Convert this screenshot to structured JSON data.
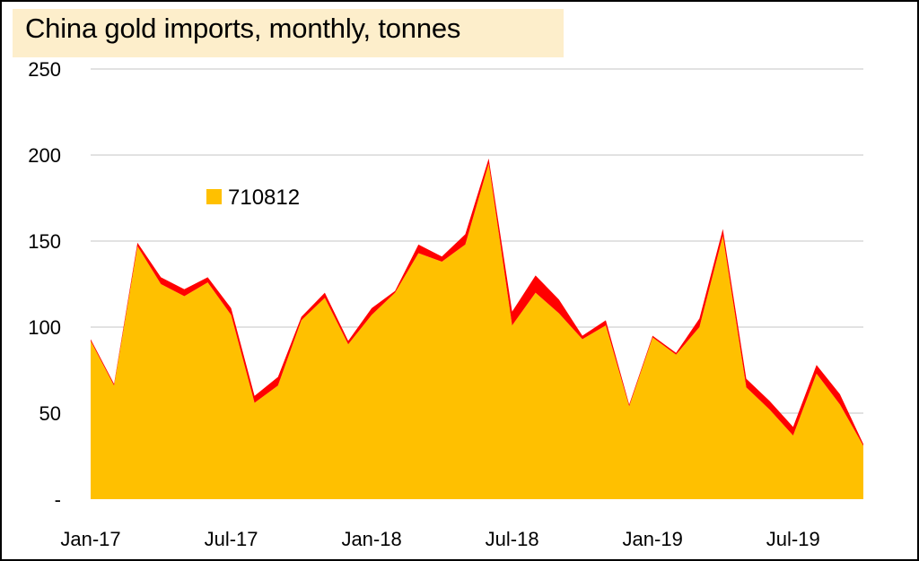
{
  "chart_data": {
    "type": "area",
    "title": "China gold imports, monthly, tonnes",
    "xlabel": "",
    "ylabel": "",
    "ylim": [
      0,
      250
    ],
    "y_ticks": [
      0,
      50,
      100,
      150,
      200,
      250
    ],
    "y_tick_labels": [
      "-",
      "50",
      "100",
      "150",
      "200",
      "250"
    ],
    "x_tick_labels": [
      "Jan-17",
      "Jul-17",
      "Jan-18",
      "Jul-18",
      "Jan-19",
      "Jul-19"
    ],
    "x": [
      "Jan-17",
      "Feb-17",
      "Mar-17",
      "Apr-17",
      "May-17",
      "Jun-17",
      "Jul-17",
      "Aug-17",
      "Sep-17",
      "Oct-17",
      "Nov-17",
      "Dec-17",
      "Jan-18",
      "Feb-18",
      "Mar-18",
      "Apr-18",
      "May-18",
      "Jun-18",
      "Jul-18",
      "Aug-18",
      "Sep-18",
      "Oct-18",
      "Nov-18",
      "Dec-18",
      "Jan-19",
      "Feb-19",
      "Mar-19",
      "Apr-19",
      "May-19",
      "Jun-19",
      "Jul-19",
      "Aug-19",
      "Sep-19",
      "Oct-19"
    ],
    "grid": true,
    "legend_position": "upper-left",
    "series": [
      {
        "name": "710812",
        "color": "#ffc000",
        "values": [
          92,
          66,
          147,
          125,
          118,
          126,
          107,
          56,
          66,
          104,
          117,
          90,
          107,
          120,
          143,
          138,
          148,
          195,
          101,
          120,
          108,
          93,
          101,
          54,
          94,
          84,
          100,
          153,
          65,
          52,
          37,
          73,
          55,
          31
        ]
      },
      {
        "color": "#ff0000",
        "values": [
          1,
          1,
          2,
          4,
          4,
          3,
          4,
          4,
          5,
          2,
          3,
          2,
          4,
          1,
          5,
          3,
          6,
          3,
          8,
          10,
          8,
          2,
          3,
          1,
          1,
          1,
          5,
          4,
          5,
          5,
          5,
          5,
          6,
          1
        ]
      }
    ]
  }
}
